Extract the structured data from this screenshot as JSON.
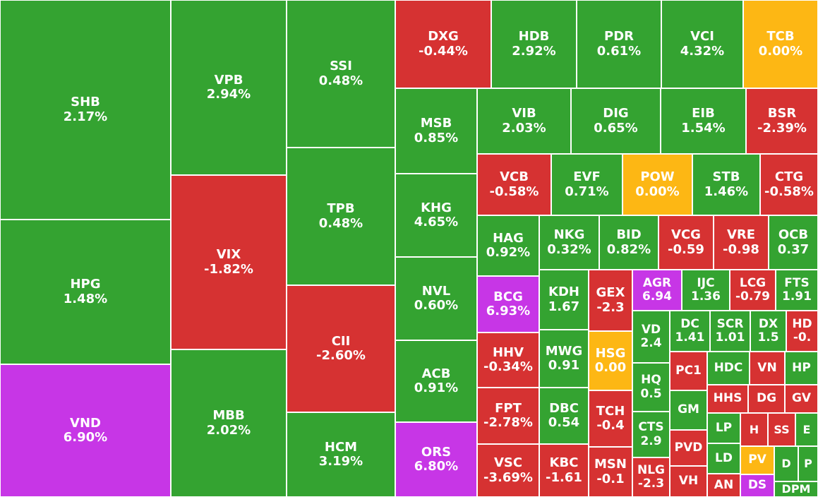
{
  "colors": {
    "up": "#34a331",
    "down": "#d63232",
    "flat": "#fdb714",
    "ceiling": "#c736e6",
    "border": "#ffffff",
    "label": "#ffffff"
  },
  "chart_data": {
    "type": "treemap",
    "title": "",
    "color_rule": {
      "up": "change > 0",
      "down": "change < 0",
      "flat": "change = 0",
      "ceiling": "change near +7% limit"
    },
    "items": [
      {
        "symbol": "SHB",
        "change": "2.17%",
        "status": "up"
      },
      {
        "symbol": "HPG",
        "change": "1.48%",
        "status": "up"
      },
      {
        "symbol": "VND",
        "change": "6.90%",
        "status": "ceiling"
      },
      {
        "symbol": "VPB",
        "change": "2.94%",
        "status": "up"
      },
      {
        "symbol": "VIX",
        "change": "-1.82%",
        "status": "down"
      },
      {
        "symbol": "MBB",
        "change": "2.02%",
        "status": "up"
      },
      {
        "symbol": "SSI",
        "change": "0.48%",
        "status": "up"
      },
      {
        "symbol": "TPB",
        "change": "0.48%",
        "status": "up"
      },
      {
        "symbol": "CII",
        "change": "-2.60%",
        "status": "down"
      },
      {
        "symbol": "HCM",
        "change": "3.19%",
        "status": "up"
      },
      {
        "symbol": "DXG",
        "change": "-0.44%",
        "status": "down"
      },
      {
        "symbol": "HDB",
        "change": "2.92%",
        "status": "up"
      },
      {
        "symbol": "PDR",
        "change": "0.61%",
        "status": "up"
      },
      {
        "symbol": "VCI",
        "change": "4.32%",
        "status": "up"
      },
      {
        "symbol": "TCB",
        "change": "0.00%",
        "status": "flat"
      },
      {
        "symbol": "MSB",
        "change": "0.85%",
        "status": "up"
      },
      {
        "symbol": "KHG",
        "change": "4.65%",
        "status": "up"
      },
      {
        "symbol": "NVL",
        "change": "0.60%",
        "status": "up"
      },
      {
        "symbol": "ACB",
        "change": "0.91%",
        "status": "up"
      },
      {
        "symbol": "ORS",
        "change": "6.80%",
        "status": "ceiling"
      },
      {
        "symbol": "VIB",
        "change": "2.03%",
        "status": "up"
      },
      {
        "symbol": "DIG",
        "change": "0.65%",
        "status": "up"
      },
      {
        "symbol": "EIB",
        "change": "1.54%",
        "status": "up"
      },
      {
        "symbol": "BSR",
        "change": "-2.39%",
        "status": "down"
      },
      {
        "symbol": "VCB",
        "change": "-0.58%",
        "status": "down"
      },
      {
        "symbol": "EVF",
        "change": "0.71%",
        "status": "up"
      },
      {
        "symbol": "POW",
        "change": "0.00%",
        "status": "flat"
      },
      {
        "symbol": "STB",
        "change": "1.46%",
        "status": "up"
      },
      {
        "symbol": "CTG",
        "change": "-0.58%",
        "status": "down"
      },
      {
        "symbol": "HAG",
        "change": "0.92%",
        "status": "up"
      },
      {
        "symbol": "NKG",
        "change": "0.32%",
        "status": "up"
      },
      {
        "symbol": "BID",
        "change": "0.82%",
        "status": "up"
      },
      {
        "symbol": "VCG",
        "change": "-0.59",
        "status": "down"
      },
      {
        "symbol": "VRE",
        "change": "-0.98",
        "status": "down"
      },
      {
        "symbol": "OCB",
        "change": "0.37",
        "status": "up"
      },
      {
        "symbol": "BCG",
        "change": "6.93%",
        "status": "ceiling"
      },
      {
        "symbol": "KDH",
        "change": "1.67",
        "status": "up"
      },
      {
        "symbol": "GEX",
        "change": "-2.3",
        "status": "down"
      },
      {
        "symbol": "AGR",
        "change": "6.94",
        "status": "ceiling"
      },
      {
        "symbol": "IJC",
        "change": "1.36",
        "status": "up"
      },
      {
        "symbol": "LCG",
        "change": "-0.79",
        "status": "down"
      },
      {
        "symbol": "FTS",
        "change": "1.91",
        "status": "up"
      },
      {
        "symbol": "VD",
        "change": "2.4",
        "status": "up"
      },
      {
        "symbol": "DC",
        "change": "1.41",
        "status": "up"
      },
      {
        "symbol": "SCR",
        "change": "1.01",
        "status": "up"
      },
      {
        "symbol": "DX",
        "change": "1.5",
        "status": "up"
      },
      {
        "symbol": "HD",
        "change": "-0.",
        "status": "down"
      },
      {
        "symbol": "HHV",
        "change": "-0.34%",
        "status": "down"
      },
      {
        "symbol": "MWG",
        "change": "0.91",
        "status": "up"
      },
      {
        "symbol": "HSG",
        "change": "0.00",
        "status": "flat"
      },
      {
        "symbol": "HQ",
        "change": "0.5",
        "status": "up"
      },
      {
        "symbol": "PC1",
        "change": "",
        "status": "down"
      },
      {
        "symbol": "HDC",
        "change": "",
        "status": "up"
      },
      {
        "symbol": "VN",
        "change": "",
        "status": "down"
      },
      {
        "symbol": "HP",
        "change": "",
        "status": "up"
      },
      {
        "symbol": "GM",
        "change": "",
        "status": "up"
      },
      {
        "symbol": "HHS",
        "change": "",
        "status": "down"
      },
      {
        "symbol": "DG",
        "change": "",
        "status": "down"
      },
      {
        "symbol": "GV",
        "change": "",
        "status": "down"
      },
      {
        "symbol": "FPT",
        "change": "-2.78%",
        "status": "down"
      },
      {
        "symbol": "DBC",
        "change": "0.54",
        "status": "up"
      },
      {
        "symbol": "TCH",
        "change": "-0.4",
        "status": "down"
      },
      {
        "symbol": "CTS",
        "change": "2.9",
        "status": "up"
      },
      {
        "symbol": "PVD",
        "change": "",
        "status": "down"
      },
      {
        "symbol": "LP",
        "change": "",
        "status": "up"
      },
      {
        "symbol": "H",
        "change": "",
        "status": "down"
      },
      {
        "symbol": "SS",
        "change": "",
        "status": "down"
      },
      {
        "symbol": "E",
        "change": "",
        "status": "up"
      },
      {
        "symbol": "LD",
        "change": "",
        "status": "up"
      },
      {
        "symbol": "PV",
        "change": "",
        "status": "flat"
      },
      {
        "symbol": "D",
        "change": "",
        "status": "up"
      },
      {
        "symbol": "P",
        "change": "",
        "status": "up"
      },
      {
        "symbol": "VSC",
        "change": "-3.69%",
        "status": "down"
      },
      {
        "symbol": "KBC",
        "change": "-1.61",
        "status": "down"
      },
      {
        "symbol": "MSN",
        "change": "-0.1",
        "status": "down"
      },
      {
        "symbol": "NLG",
        "change": "-2.3",
        "status": "down"
      },
      {
        "symbol": "VH",
        "change": "",
        "status": "down"
      },
      {
        "symbol": "AN",
        "change": "",
        "status": "down"
      },
      {
        "symbol": "DS",
        "change": "",
        "status": "ceiling"
      },
      {
        "symbol": "DPM",
        "change": "",
        "status": "up"
      }
    ]
  }
}
